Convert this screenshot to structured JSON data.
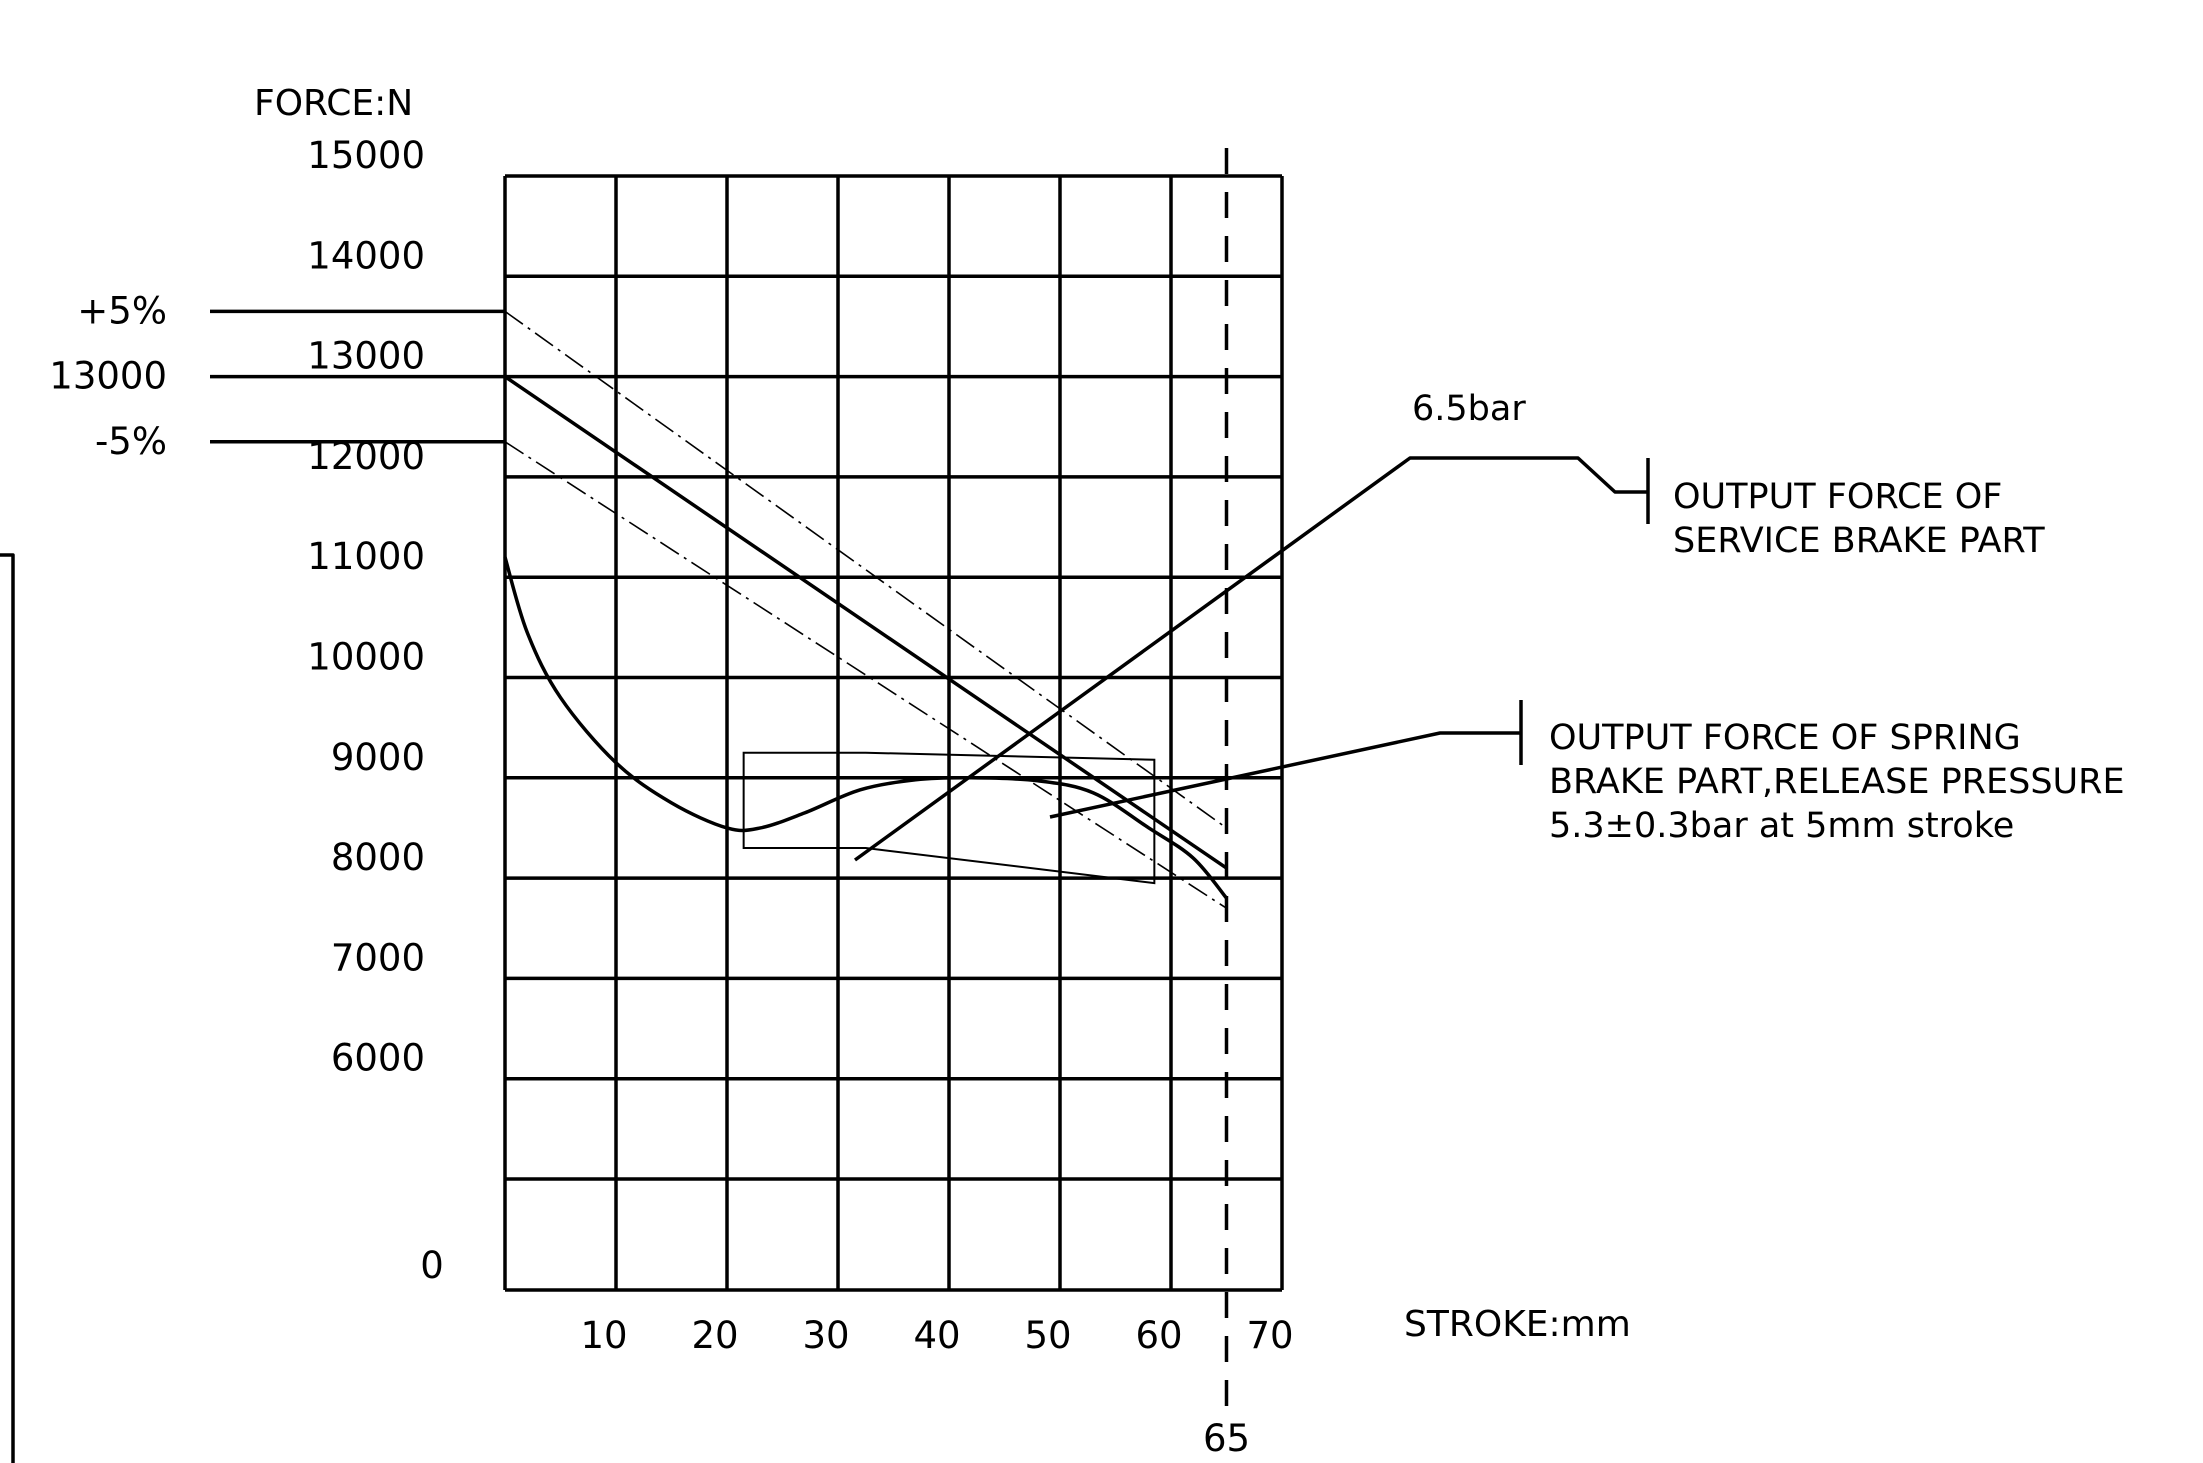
{
  "chart_data": {
    "type": "line",
    "title": "",
    "xlabel": "STROKE:mm",
    "ylabel": "FORCE:N",
    "x_ticks": [
      "10",
      "20",
      "30",
      "40",
      "50",
      "60",
      "70"
    ],
    "y_ticks": [
      "0",
      "6000",
      "7000",
      "8000",
      "9000",
      "10000",
      "11000",
      "12000",
      "13000",
      "14000",
      "15000"
    ],
    "xlim": [
      0,
      70
    ],
    "y_scale": "segmented: 0 at bottom, then 5000 to 15000 evenly spaced",
    "grid": true,
    "reference_line_x": 65,
    "reference_line_label": "65",
    "tolerance_labels": [
      {
        "label": "+5%",
        "value": 13650
      },
      {
        "label": "13000",
        "value": 13000
      },
      {
        "label": "-5%",
        "value": 12350
      }
    ],
    "series": [
      {
        "name": "OUTPUT FORCE OF SERVICE BRAKE PART",
        "label": "6.5bar",
        "points": [
          [
            0,
            11200
          ],
          [
            2,
            10450
          ],
          [
            5,
            9800
          ],
          [
            10,
            9150
          ],
          [
            15,
            8750
          ],
          [
            20,
            8500
          ],
          [
            23,
            8500
          ],
          [
            27,
            8650
          ],
          [
            32,
            8880
          ],
          [
            37,
            8980
          ],
          [
            42,
            9000
          ],
          [
            48,
            8970
          ],
          [
            53,
            8850
          ],
          [
            58,
            8500
          ],
          [
            62,
            8200
          ],
          [
            65,
            7800
          ]
        ]
      },
      {
        "name": "OUTPUT FORCE OF SPRING BRAKE PART,RELEASE PRESSURE 5.3±0.3bar at 5mm stroke",
        "points": [
          [
            0,
            13000
          ],
          [
            65,
            8100
          ]
        ]
      },
      {
        "name": "+5%",
        "points": [
          [
            0,
            13650
          ],
          [
            65,
            8500
          ]
        ]
      },
      {
        "name": "-5%",
        "points": [
          [
            0,
            12350
          ],
          [
            65,
            7700
          ]
        ]
      }
    ],
    "tolerance_box": {
      "points": [
        [
          21.5,
          9250
        ],
        [
          32.5,
          9250
        ],
        [
          58.5,
          9180
        ],
        [
          58.5,
          7950
        ],
        [
          32.5,
          8300
        ],
        [
          21.5,
          8300
        ]
      ]
    },
    "annotations": [
      "6.5bar",
      "OUTPUT FORCE OF",
      "SERVICE BRAKE PART",
      "OUTPUT FORCE OF SPRING",
      "BRAKE PART,RELEASE PRESSURE",
      "5.3±0.3bar at 5mm stroke"
    ]
  }
}
